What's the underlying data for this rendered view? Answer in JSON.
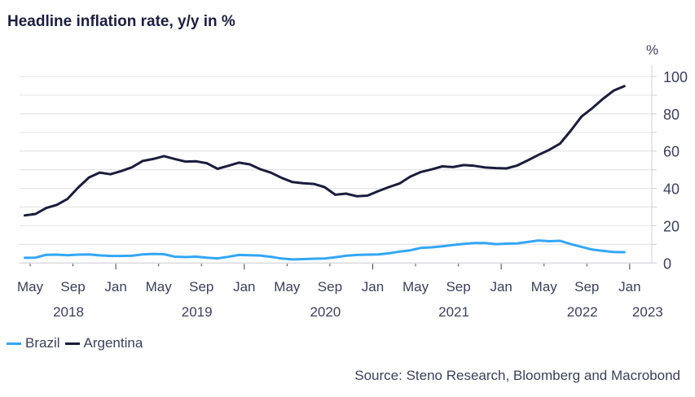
{
  "title": "Headline inflation rate, y/y in %",
  "source": "Source: Steno Research, Bloomberg and Macrobond",
  "chart_data": {
    "type": "line",
    "title": "Headline inflation rate, y/y in %",
    "ylabel": "%",
    "ylim": [
      0,
      100
    ],
    "yticks": [
      0,
      20,
      40,
      60,
      80,
      100
    ],
    "grid": true,
    "y_axis_position": "right",
    "legend_placement": "bottom-left",
    "x_start": "2018-04",
    "x_end": "2022-12",
    "x_ticks": [
      {
        "month": "May",
        "year": "2018"
      },
      {
        "month": "Sep",
        "year": ""
      },
      {
        "month": "Jan",
        "year": ""
      },
      {
        "month": "May",
        "year": "2019"
      },
      {
        "month": "Sep",
        "year": ""
      },
      {
        "month": "Jan",
        "year": ""
      },
      {
        "month": "May",
        "year": "2020"
      },
      {
        "month": "Sep",
        "year": ""
      },
      {
        "month": "Jan",
        "year": ""
      },
      {
        "month": "May",
        "year": "2021"
      },
      {
        "month": "Sep",
        "year": ""
      },
      {
        "month": "Jan",
        "year": ""
      },
      {
        "month": "May",
        "year": "2022"
      },
      {
        "month": "Sep",
        "year": ""
      },
      {
        "month": "Jan",
        "year": "2023"
      }
    ],
    "series": [
      {
        "name": "Brazil",
        "color": "#33a6f5",
        "values": [
          2.8,
          2.9,
          4.4,
          4.5,
          4.2,
          4.5,
          4.6,
          4.1,
          3.8,
          3.8,
          3.9,
          4.6,
          4.9,
          4.7,
          3.4,
          3.2,
          3.4,
          2.9,
          2.5,
          3.3,
          4.3,
          4.2,
          4.0,
          3.3,
          2.4,
          1.9,
          2.1,
          2.3,
          2.4,
          3.1,
          3.9,
          4.3,
          4.5,
          4.6,
          5.2,
          6.1,
          6.8,
          8.1,
          8.4,
          9.0,
          9.7,
          10.3,
          10.7,
          10.7,
          10.1,
          10.4,
          10.5,
          11.3,
          12.1,
          11.7,
          11.9,
          10.1,
          8.7,
          7.2,
          6.5,
          5.9,
          5.8
        ]
      },
      {
        "name": "Argentina",
        "color": "#1a1d3b",
        "values": [
          25.5,
          26.3,
          29.5,
          31.2,
          34.4,
          40.5,
          45.9,
          48.5,
          47.6,
          49.3,
          51.3,
          54.7,
          55.8,
          57.3,
          55.8,
          54.4,
          54.5,
          53.5,
          50.5,
          52.1,
          53.8,
          52.9,
          50.3,
          48.4,
          45.6,
          43.4,
          42.8,
          42.4,
          40.7,
          36.6,
          37.2,
          35.8,
          36.1,
          38.5,
          40.7,
          42.6,
          46.3,
          48.8,
          50.2,
          51.8,
          51.4,
          52.5,
          52.1,
          51.2,
          50.9,
          50.7,
          52.3,
          55.1,
          58.0,
          60.7,
          64.0,
          71.0,
          78.5,
          83.0,
          88.0,
          92.4,
          94.8
        ]
      }
    ]
  }
}
